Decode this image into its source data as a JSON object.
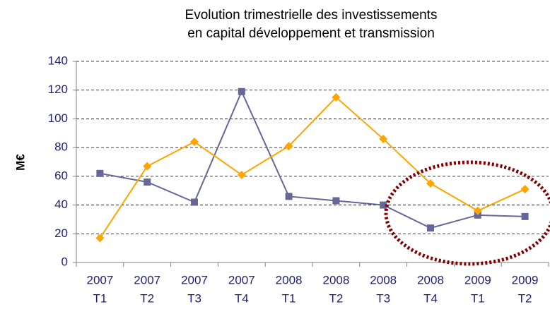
{
  "chart_data": {
    "type": "line",
    "title": [
      "Evolution trimestrielle des investissements",
      "en capital développement et transmission"
    ],
    "ylabel": "M€",
    "categories": [
      [
        "2007",
        "T1"
      ],
      [
        "2007",
        "T2"
      ],
      [
        "2007",
        "T3"
      ],
      [
        "2007",
        "T4"
      ],
      [
        "2008",
        "T1"
      ],
      [
        "2008",
        "T2"
      ],
      [
        "2008",
        "T3"
      ],
      [
        "2008",
        "T4"
      ],
      [
        "2009",
        "T1"
      ],
      [
        "2009",
        "T2"
      ]
    ],
    "series": [
      {
        "color": "#666699",
        "marker": "square",
        "values": [
          62,
          56,
          42,
          119,
          46,
          43,
          40,
          24,
          33,
          32
        ]
      },
      {
        "color": "#ffa500",
        "marker": "diamond",
        "values": [
          17,
          67,
          84,
          61,
          81,
          115,
          86,
          55,
          36,
          51
        ]
      }
    ],
    "ylim": [
      0,
      140
    ],
    "yticks": [
      0,
      20,
      40,
      60,
      80,
      100,
      120,
      140
    ],
    "grid": true
  }
}
